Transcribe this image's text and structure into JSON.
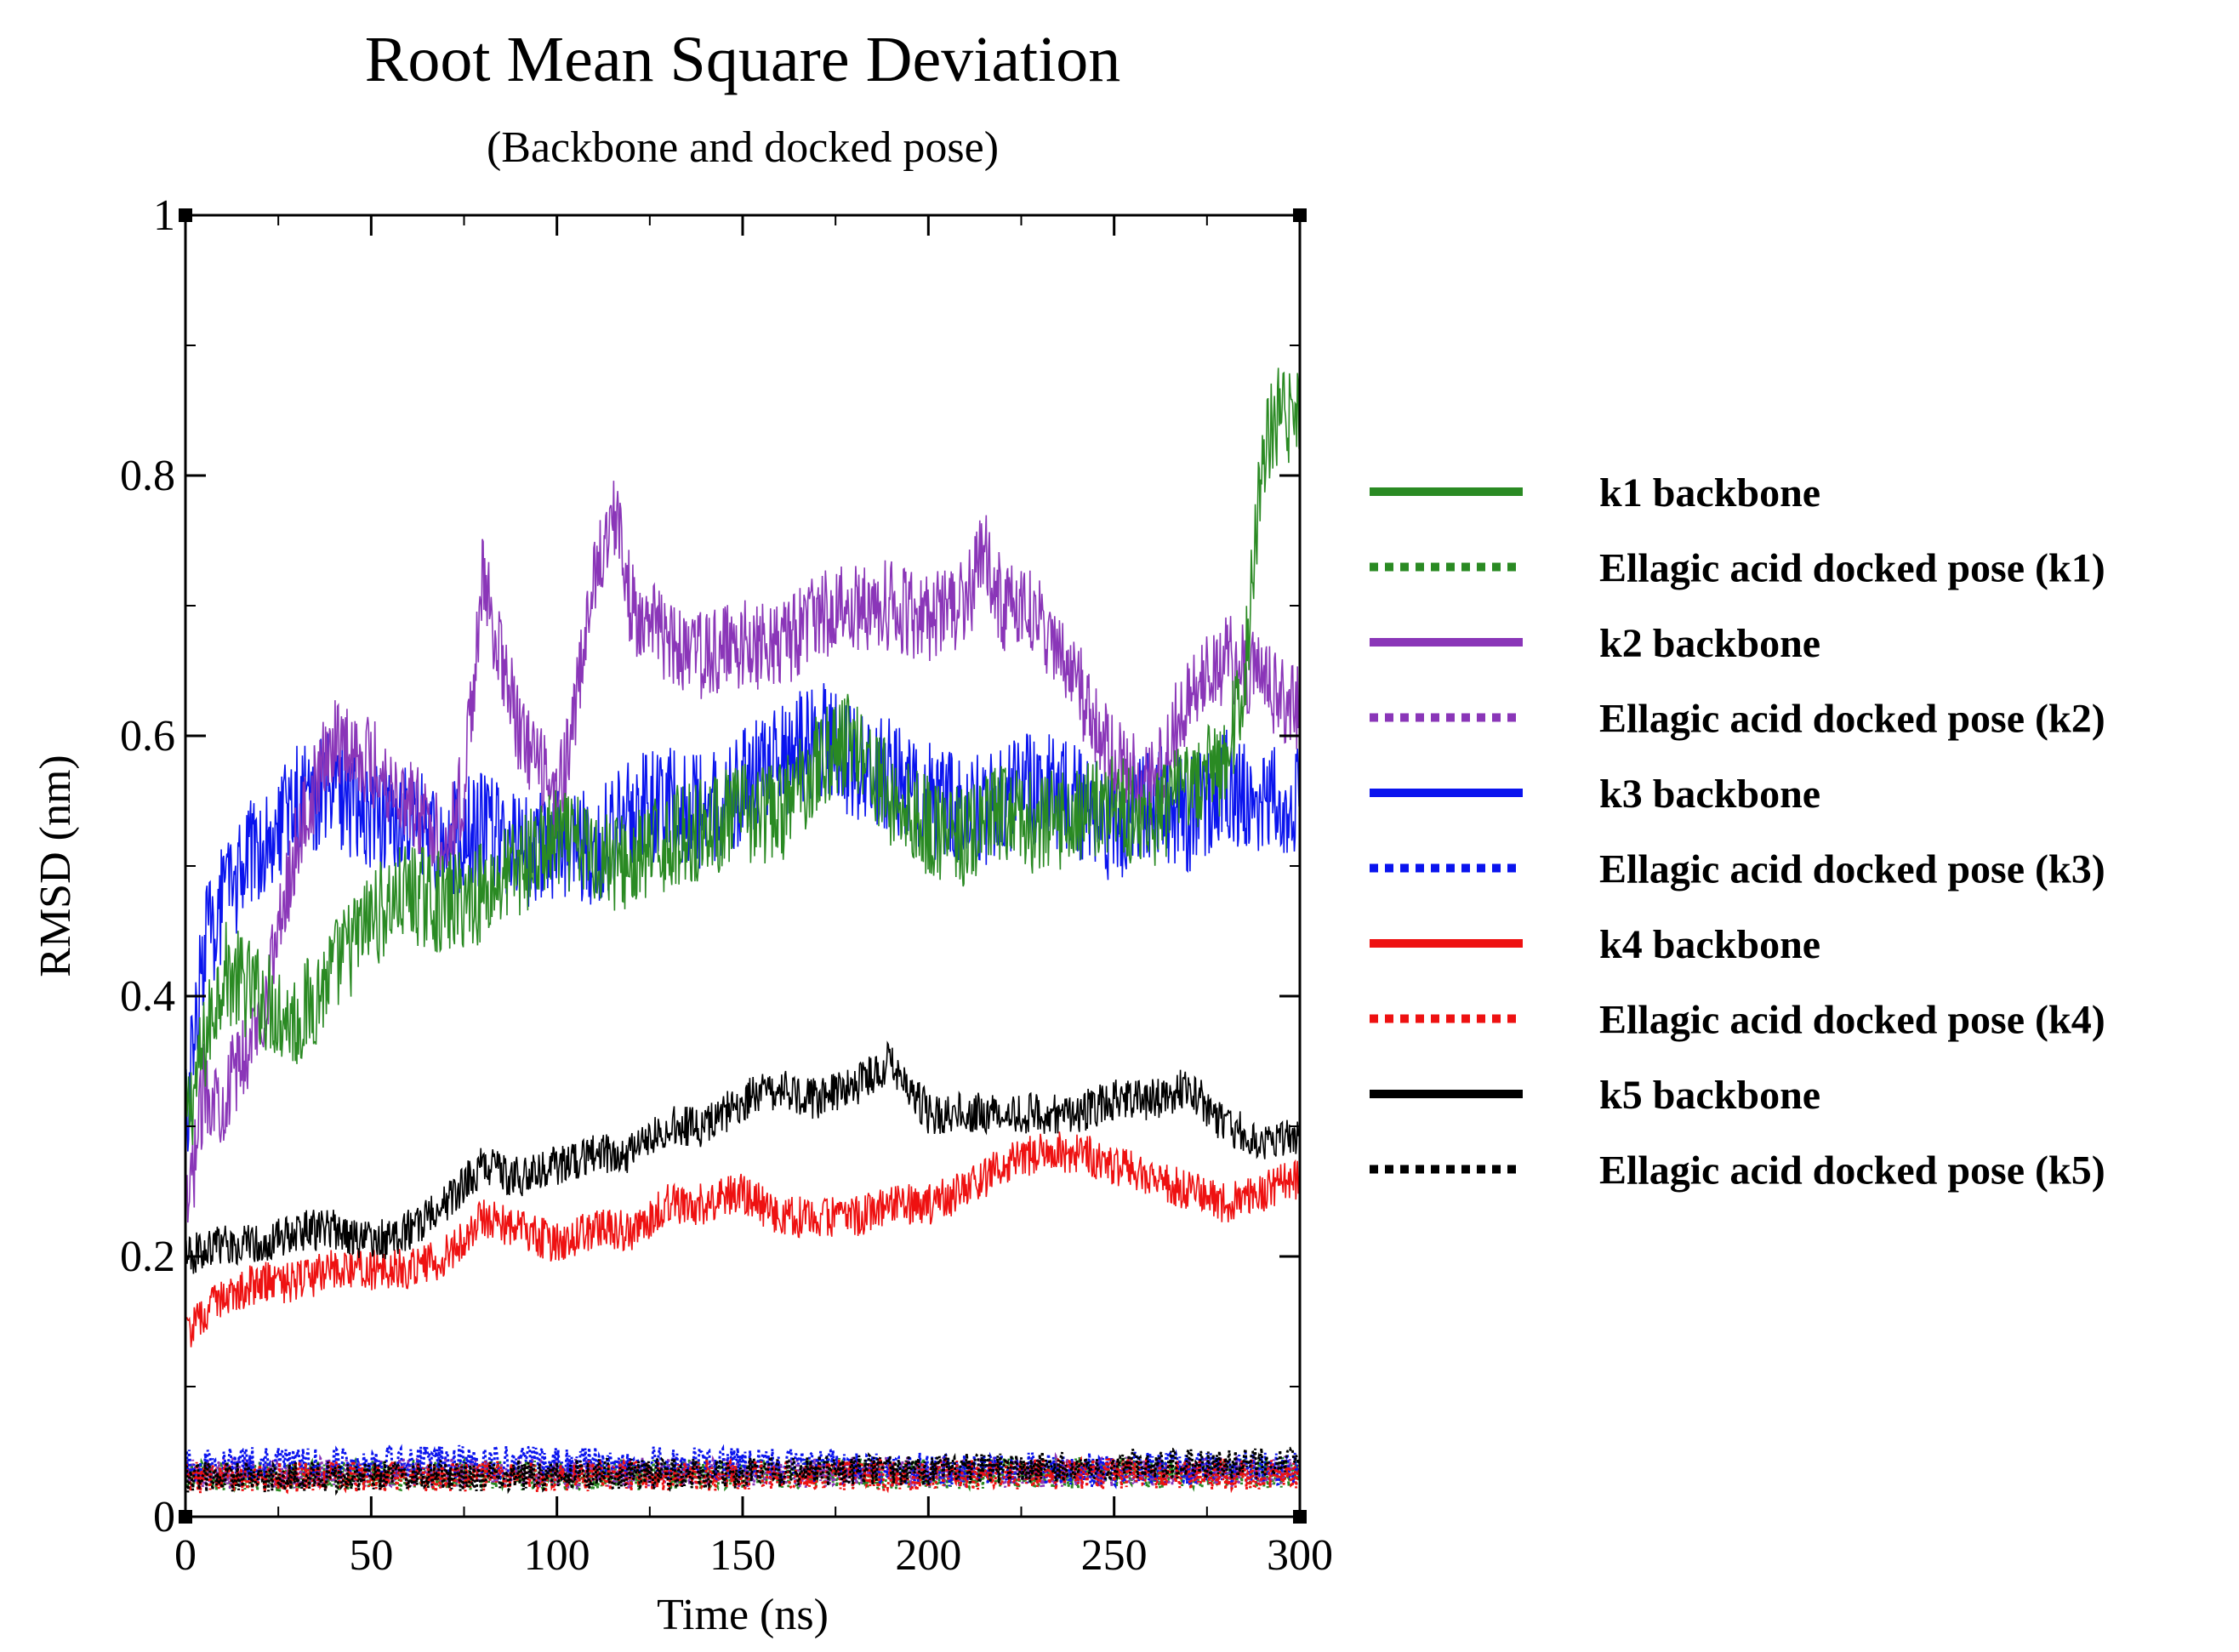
{
  "chart_data": {
    "type": "line",
    "title": "Root Mean Square Deviation",
    "subtitle": "(Backbone and docked pose)",
    "xlabel": "Time (ns)",
    "ylabel": "RMSD (nm)",
    "xlim": [
      0,
      300
    ],
    "ylim": [
      0,
      1
    ],
    "xticks": [
      0,
      50,
      100,
      150,
      200,
      250,
      300
    ],
    "yticks": [
      0,
      0.2,
      0.4,
      0.6,
      0.8,
      1
    ],
    "ytick_labels": [
      "0",
      "0.2",
      "0.4",
      "0.6",
      "0.8",
      "1"
    ],
    "grid": false,
    "legend_position": "right",
    "series": [
      {
        "name": "k1 backbone",
        "color": "#2a8a23",
        "style": "solid",
        "x": [
          0,
          10,
          20,
          30,
          40,
          50,
          60,
          70,
          80,
          90,
          100,
          110,
          120,
          130,
          140,
          150,
          160,
          170,
          180,
          190,
          200,
          210,
          220,
          230,
          240,
          250,
          260,
          270,
          280,
          285,
          290,
          295,
          300
        ],
        "values": [
          0.3,
          0.42,
          0.4,
          0.38,
          0.42,
          0.46,
          0.48,
          0.47,
          0.48,
          0.5,
          0.52,
          0.51,
          0.5,
          0.52,
          0.53,
          0.54,
          0.54,
          0.58,
          0.6,
          0.55,
          0.53,
          0.52,
          0.54,
          0.53,
          0.54,
          0.55,
          0.53,
          0.56,
          0.58,
          0.64,
          0.82,
          0.85,
          0.84
        ],
        "noise": 0.04
      },
      {
        "name": "Ellagic acid docked pose (k1)",
        "color": "#2a8a23",
        "style": "dotted",
        "x": [
          0,
          50,
          100,
          150,
          200,
          250,
          300
        ],
        "values": [
          0.03,
          0.032,
          0.032,
          0.033,
          0.033,
          0.034,
          0.034
        ],
        "noise": 0.012
      },
      {
        "name": "k2 backbone",
        "color": "#8a36b8",
        "style": "solid",
        "x": [
          0,
          5,
          10,
          20,
          30,
          40,
          50,
          60,
          70,
          75,
          80,
          85,
          90,
          100,
          105,
          110,
          115,
          120,
          130,
          140,
          150,
          160,
          170,
          180,
          190,
          200,
          210,
          215,
          220,
          230,
          240,
          250,
          260,
          270,
          280,
          290,
          300
        ],
        "values": [
          0.22,
          0.33,
          0.32,
          0.38,
          0.52,
          0.6,
          0.58,
          0.55,
          0.52,
          0.56,
          0.72,
          0.66,
          0.6,
          0.55,
          0.62,
          0.72,
          0.78,
          0.7,
          0.67,
          0.66,
          0.67,
          0.67,
          0.69,
          0.7,
          0.7,
          0.69,
          0.7,
          0.74,
          0.7,
          0.69,
          0.64,
          0.58,
          0.56,
          0.63,
          0.66,
          0.64,
          0.62
        ],
        "noise": 0.035
      },
      {
        "name": "Ellagic acid docked pose (k2)",
        "color": "#8a36b8",
        "style": "dotted",
        "x": [
          0,
          50,
          100,
          150,
          200,
          250,
          300
        ],
        "values": [
          0.033,
          0.034,
          0.033,
          0.034,
          0.034,
          0.035,
          0.035
        ],
        "noise": 0.012
      },
      {
        "name": "k3 backbone",
        "color": "#0a14ee",
        "style": "solid",
        "x": [
          0,
          5,
          10,
          20,
          30,
          40,
          50,
          60,
          70,
          80,
          90,
          100,
          110,
          120,
          130,
          140,
          150,
          160,
          170,
          180,
          190,
          200,
          210,
          220,
          230,
          240,
          250,
          260,
          270,
          280,
          290,
          300
        ],
        "values": [
          0.3,
          0.44,
          0.47,
          0.52,
          0.55,
          0.56,
          0.54,
          0.53,
          0.52,
          0.53,
          0.51,
          0.52,
          0.51,
          0.54,
          0.55,
          0.54,
          0.56,
          0.58,
          0.6,
          0.58,
          0.57,
          0.55,
          0.54,
          0.55,
          0.56,
          0.55,
          0.53,
          0.55,
          0.54,
          0.56,
          0.55,
          0.55
        ],
        "noise": 0.045
      },
      {
        "name": "Ellagic acid docked pose (k3)",
        "color": "#0a14ee",
        "style": "dotted",
        "x": [
          0,
          50,
          100,
          150,
          200,
          250,
          300
        ],
        "values": [
          0.04,
          0.042,
          0.042,
          0.04,
          0.036,
          0.037,
          0.038
        ],
        "noise": 0.013
      },
      {
        "name": "k4 backbone",
        "color": "#ee1111",
        "style": "solid",
        "x": [
          0,
          10,
          20,
          30,
          40,
          50,
          60,
          70,
          80,
          90,
          100,
          110,
          120,
          130,
          140,
          150,
          160,
          170,
          180,
          190,
          200,
          210,
          220,
          230,
          240,
          250,
          260,
          270,
          280,
          290,
          300
        ],
        "values": [
          0.14,
          0.17,
          0.18,
          0.18,
          0.19,
          0.19,
          0.19,
          0.2,
          0.23,
          0.22,
          0.21,
          0.22,
          0.22,
          0.24,
          0.24,
          0.25,
          0.23,
          0.23,
          0.23,
          0.24,
          0.24,
          0.25,
          0.27,
          0.28,
          0.28,
          0.27,
          0.26,
          0.25,
          0.24,
          0.25,
          0.26
        ],
        "noise": 0.016
      },
      {
        "name": "Ellagic acid docked pose (k4)",
        "color": "#ee1111",
        "style": "dotted",
        "x": [
          0,
          50,
          100,
          150,
          200,
          250,
          300
        ],
        "values": [
          0.03,
          0.031,
          0.031,
          0.032,
          0.032,
          0.033,
          0.033
        ],
        "noise": 0.012
      },
      {
        "name": "k5 backbone",
        "color": "#000000",
        "style": "solid",
        "x": [
          0,
          10,
          20,
          30,
          40,
          50,
          60,
          70,
          80,
          90,
          100,
          110,
          120,
          130,
          140,
          150,
          160,
          170,
          180,
          190,
          200,
          210,
          220,
          230,
          240,
          250,
          260,
          270,
          280,
          290,
          300
        ],
        "values": [
          0.2,
          0.21,
          0.21,
          0.22,
          0.22,
          0.21,
          0.22,
          0.24,
          0.27,
          0.26,
          0.27,
          0.28,
          0.28,
          0.3,
          0.3,
          0.32,
          0.33,
          0.32,
          0.33,
          0.35,
          0.31,
          0.31,
          0.31,
          0.31,
          0.31,
          0.32,
          0.32,
          0.33,
          0.3,
          0.29,
          0.29
        ],
        "noise": 0.016
      },
      {
        "name": "Ellagic acid docked pose (k5)",
        "color": "#000000",
        "style": "dotted",
        "x": [
          0,
          50,
          100,
          150,
          200,
          250,
          300
        ],
        "values": [
          0.03,
          0.031,
          0.032,
          0.034,
          0.036,
          0.04,
          0.041
        ],
        "noise": 0.012
      }
    ]
  }
}
